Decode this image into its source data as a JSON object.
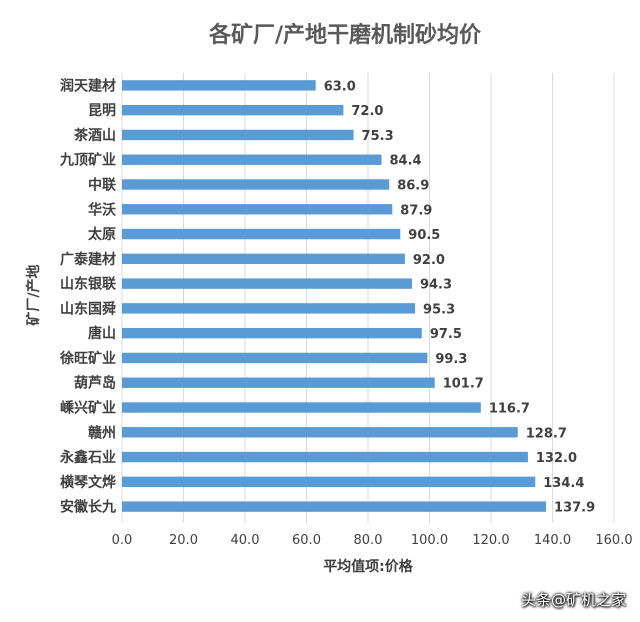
{
  "chart_data": {
    "type": "bar",
    "orientation": "horizontal",
    "title": "各矿厂/产地干磨机制砂均价",
    "xlabel": "平均值项:价格",
    "ylabel": "矿厂/产地",
    "xlim": [
      0,
      160
    ],
    "x_ticks": [
      "0.0",
      "20.0",
      "40.0",
      "60.0",
      "80.0",
      "100.0",
      "120.0",
      "140.0",
      "160.0"
    ],
    "grid": true,
    "categories": [
      "润天建材",
      "昆明",
      "茶酒山",
      "九顶矿业",
      "中联",
      "华沃",
      "太原",
      "广泰建材",
      "山东银联",
      "山东国舜",
      "唐山",
      "徐旺矿业",
      "葫芦岛",
      "嵊兴矿业",
      "赣州",
      "永鑫石业",
      "横琴文烨",
      "安徽长九"
    ],
    "values": [
      63.0,
      72.0,
      75.3,
      84.4,
      86.9,
      87.9,
      90.5,
      92.0,
      94.3,
      95.3,
      97.5,
      99.3,
      101.7,
      116.7,
      128.7,
      132.0,
      134.4,
      137.9
    ],
    "value_labels": [
      "63.0",
      "72.0",
      "75.3",
      "84.4",
      "86.9",
      "87.9",
      "90.5",
      "92.0",
      "94.3",
      "95.3",
      "97.5",
      "99.3",
      "101.7",
      "116.7",
      "128.7",
      "132.0",
      "134.4",
      "137.9"
    ],
    "bar_color": "#5b9bd5",
    "grid_color": "#d9d9d9",
    "text_color": "#404040",
    "title_color": "#595959"
  },
  "watermark": "头条@矿机之家"
}
